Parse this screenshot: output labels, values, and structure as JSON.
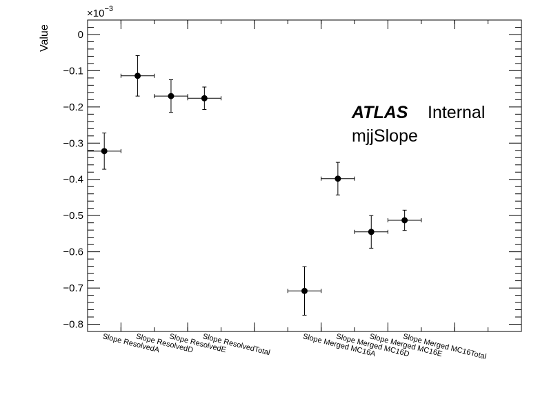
{
  "chart_data": {
    "type": "scatter",
    "ylabel": "Value",
    "y_exponent_base": "×10",
    "y_exponent_power": "−3",
    "ylim": [
      -0.00082,
      4e-05
    ],
    "y_ticks": [
      {
        "value": 0,
        "label": "0"
      },
      {
        "value": -0.0001,
        "label": "−0.1"
      },
      {
        "value": -0.0002,
        "label": "−0.2"
      },
      {
        "value": -0.0003,
        "label": "−0.3"
      },
      {
        "value": -0.0004,
        "label": "−0.4"
      },
      {
        "value": -0.0005,
        "label": "−0.5"
      },
      {
        "value": -0.0006,
        "label": "−0.6"
      },
      {
        "value": -0.0007,
        "label": "−0.7"
      },
      {
        "value": -0.0008,
        "label": "−0.8"
      }
    ],
    "xlim": [
      0,
      13
    ],
    "categories": [
      "Slope ResolvedA",
      "Slope ResolvedD",
      "Slope ResolvedE",
      "Slope ResolvedTotal",
      "",
      "",
      "Slope Merged MC16A",
      "Slope Merged MC16D",
      "Slope Merged MC16E",
      "Slope Merged MC16Total"
    ],
    "points": [
      {
        "x": 0.5,
        "y": -0.000322,
        "yerr": 5e-05,
        "xerr": 0.5
      },
      {
        "x": 1.5,
        "y": -0.000114,
        "yerr": 5.6e-05,
        "xerr": 0.5
      },
      {
        "x": 2.5,
        "y": -0.00017,
        "yerr": 4.5e-05,
        "xerr": 0.5
      },
      {
        "x": 3.5,
        "y": -0.000176,
        "yerr": 3.1e-05,
        "xerr": 0.5
      },
      {
        "x": 6.5,
        "y": -0.000708,
        "yerr": 6.7e-05,
        "xerr": 0.5
      },
      {
        "x": 7.5,
        "y": -0.000398,
        "yerr": 4.5e-05,
        "xerr": 0.5
      },
      {
        "x": 8.5,
        "y": -0.000545,
        "yerr": 4.5e-05,
        "xerr": 0.5
      },
      {
        "x": 9.5,
        "y": -0.000513,
        "yerr": 2.8e-05,
        "xerr": 0.5
      }
    ],
    "grid": false,
    "annotations": {
      "atlas": "ATLAS",
      "atlas_status": "Internal",
      "label": "mjjSlope"
    },
    "colors": {
      "marker": "#000000",
      "axis": "#000000",
      "background": "#ffffff"
    }
  }
}
